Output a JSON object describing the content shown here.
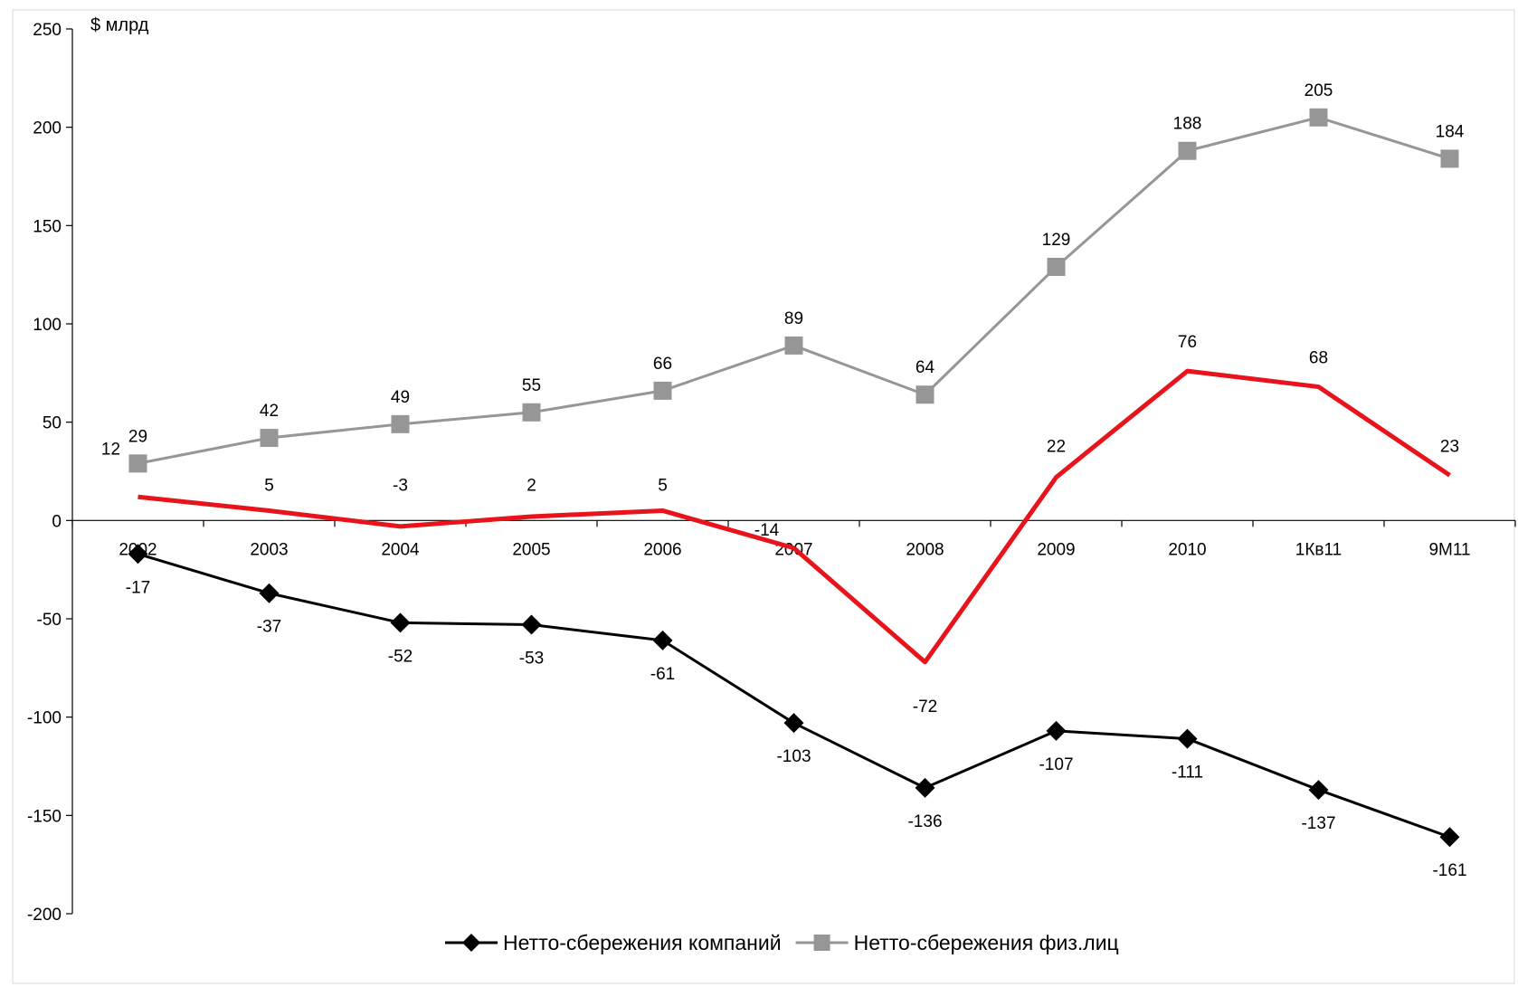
{
  "chart_data": {
    "type": "line",
    "unit_label": "$ млрд",
    "categories": [
      "2002",
      "2003",
      "2004",
      "2005",
      "2006",
      "2007",
      "2008",
      "2009",
      "2010",
      "1Кв11",
      "9М11"
    ],
    "ylim": [
      -200,
      250
    ],
    "yticks": [
      -200,
      -150,
      -100,
      -50,
      0,
      50,
      100,
      150,
      200,
      250
    ],
    "grid": false,
    "legend_position": "bottom",
    "series": [
      {
        "name": "Нетто-сбережения компаний",
        "color": "#000000",
        "marker": "diamond",
        "in_legend": true,
        "values": [
          -17,
          -37,
          -52,
          -53,
          -61,
          -103,
          -136,
          -107,
          -111,
          -137,
          -161
        ]
      },
      {
        "name": "Нетто-сбережения физ.лиц",
        "color": "#969696",
        "marker": "square",
        "in_legend": true,
        "values": [
          29,
          42,
          49,
          55,
          66,
          89,
          64,
          129,
          188,
          205,
          184
        ]
      },
      {
        "name": "",
        "color": "#e8141c",
        "marker": "none",
        "in_legend": false,
        "values": [
          12,
          5,
          -3,
          2,
          5,
          -14,
          -72,
          22,
          76,
          68,
          23
        ]
      }
    ]
  }
}
